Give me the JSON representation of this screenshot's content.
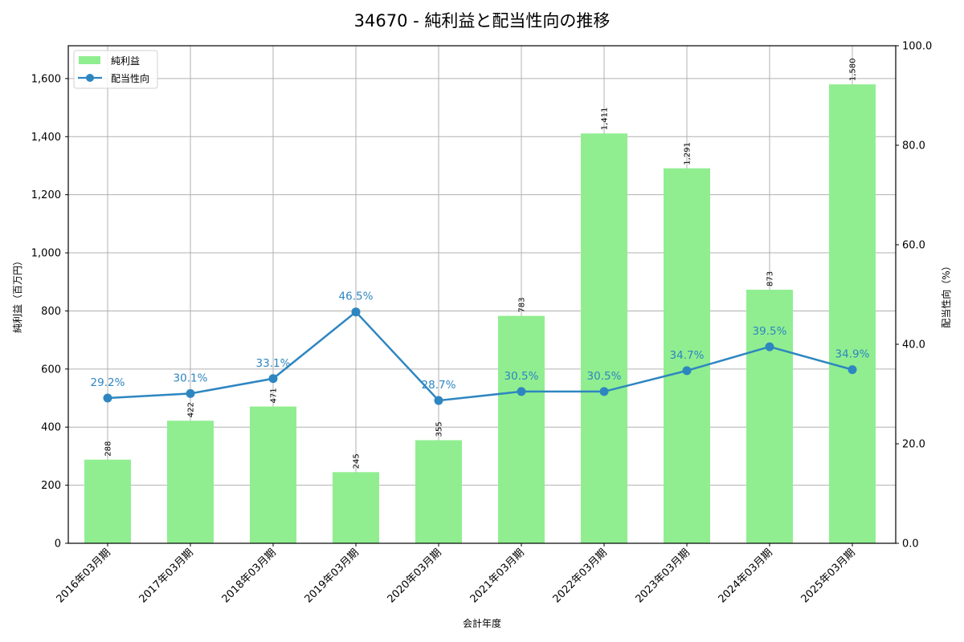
{
  "chart_data": {
    "type": "bar+line",
    "title": "34670 - 純利益と配当性向の推移",
    "xlabel": "会計年度",
    "ylabel": "純利益（百万円）",
    "ylabel_right": "配当性向（%）",
    "categories": [
      "2016年03月期",
      "2017年03月期",
      "2018年03月期",
      "2019年03月期",
      "2020年03月期",
      "2021年03月期",
      "2022年03月期",
      "2023年03月期",
      "2024年03月期",
      "2025年03月期"
    ],
    "series": [
      {
        "name": "純利益",
        "type": "bar",
        "axis": "left",
        "color": "#90ee90",
        "values": [
          288,
          422,
          471,
          245,
          355,
          783,
          1411,
          1291,
          873,
          1580
        ],
        "labels": [
          "288",
          "422",
          "471",
          "245",
          "355",
          "783",
          "1,411",
          "1,291",
          "873",
          "1,580"
        ]
      },
      {
        "name": "配当性向",
        "type": "line",
        "axis": "right",
        "color": "#2e86c1",
        "values": [
          29.2,
          30.1,
          33.1,
          46.5,
          28.7,
          30.5,
          30.5,
          34.7,
          39.5,
          34.9
        ],
        "labels": [
          "29.2%",
          "30.1%",
          "33.1%",
          "46.5%",
          "28.7%",
          "30.5%",
          "30.5%",
          "34.7%",
          "39.5%",
          "34.9%"
        ]
      }
    ],
    "ylim": [
      0,
      1713
    ],
    "ylim_right": [
      0,
      100
    ],
    "yticks": [
      0,
      200,
      400,
      600,
      800,
      1000,
      1200,
      1400,
      1600
    ],
    "ytick_labels": [
      "0",
      "200",
      "400",
      "600",
      "800",
      "1,000",
      "1,200",
      "1,400",
      "1,600"
    ],
    "yticks_right": [
      0,
      20,
      40,
      60,
      80,
      100
    ],
    "ytick_labels_right": [
      "0.0",
      "20.0",
      "40.0",
      "60.0",
      "80.0",
      "100.0"
    ],
    "grid": true,
    "legend_position": "upper left"
  }
}
